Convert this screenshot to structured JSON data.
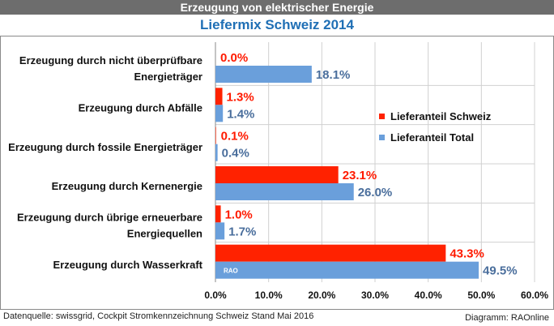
{
  "header": {
    "title": "Erzeugung von elektrischer Energie",
    "subtitle": "Liefermix Schweiz 2014"
  },
  "footer": {
    "source": "Datenquelle: swissgrid, Cockpit Stromkennzeichnung Schweiz Stand Mai 2016",
    "credit": "Diagramm: RAOnline"
  },
  "watermark": "RAO",
  "colors": {
    "schweiz": "#ff2200",
    "total": "#6a9fdb",
    "schweiz_label": "#ff1a00",
    "total_label": "#4a6e9c",
    "grid": "#d0d0d0"
  },
  "chart_data": {
    "type": "bar",
    "orientation": "horizontal",
    "categories": [
      [
        "Erzeugung durch nicht überprüfbare",
        "Energieträger"
      ],
      [
        "Erzeugung durch Abfälle"
      ],
      [
        "Erzeugung durch fossile Energieträger"
      ],
      [
        "Erzeugung durch Kernenergie"
      ],
      [
        "Erzeugung durch übrige erneuerbare",
        "Energiequellen"
      ],
      [
        "Erzeugung durch Wasserkraft"
      ]
    ],
    "series": [
      {
        "name": "Lieferanteil Schweiz",
        "values": [
          0.0,
          1.3,
          0.1,
          23.1,
          1.0,
          43.3
        ],
        "labels": [
          "0.0%",
          "1.3%",
          "0.1%",
          "23.1%",
          "1.0%",
          "43.3%"
        ]
      },
      {
        "name": "Lieferanteil Total",
        "values": [
          18.1,
          1.4,
          0.4,
          26.0,
          1.7,
          49.5
        ],
        "labels": [
          "18.1%",
          "1.4%",
          "0.4%",
          "26.0%",
          "1.7%",
          "49.5%"
        ]
      }
    ],
    "xlim": [
      0,
      60
    ],
    "xticks": [
      "0.0%",
      "10.0%",
      "20.0%",
      "30.0%",
      "40.0%",
      "50.0%",
      "60.0%"
    ],
    "grid": true,
    "legend_position": "right"
  }
}
